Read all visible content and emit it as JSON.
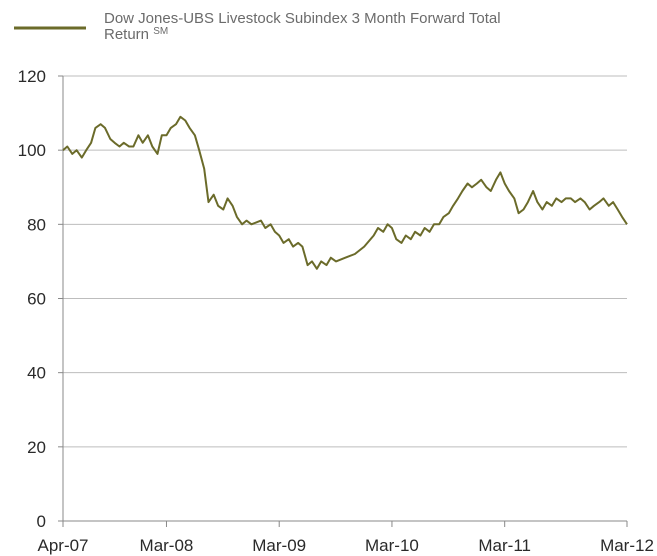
{
  "chart_data": {
    "type": "line",
    "title": "",
    "xlabel": "",
    "ylabel": "",
    "ylim": [
      0,
      120
    ],
    "yticks": [
      0,
      20,
      40,
      60,
      80,
      100,
      120
    ],
    "xlim": [
      "2007-04-01",
      "2012-03-31"
    ],
    "x_tick_labels": [
      "Apr-07",
      "Mar-08",
      "Mar-09",
      "Mar-10",
      "Mar-11",
      "Mar-12"
    ],
    "x_tick_dates": [
      "2007-04-01",
      "2008-03-01",
      "2009-03-01",
      "2010-03-01",
      "2011-03-01",
      "2012-03-31"
    ],
    "grid": "horizontal",
    "legend_position": "top-left",
    "series": [
      {
        "name": "Dow Jones-UBS Livestock Subindex 3 Month Forward Total Return",
        "name_sup": "SM",
        "color": "#6b6b2a",
        "points": [
          [
            "2007-04-01",
            100
          ],
          [
            "2007-04-15",
            101
          ],
          [
            "2007-05-01",
            99
          ],
          [
            "2007-05-15",
            100
          ],
          [
            "2007-06-01",
            98
          ],
          [
            "2007-06-15",
            100
          ],
          [
            "2007-07-01",
            102
          ],
          [
            "2007-07-15",
            106
          ],
          [
            "2007-08-01",
            107
          ],
          [
            "2007-08-15",
            106
          ],
          [
            "2007-09-01",
            103
          ],
          [
            "2007-09-15",
            102
          ],
          [
            "2007-10-01",
            101
          ],
          [
            "2007-10-15",
            102
          ],
          [
            "2007-11-01",
            101
          ],
          [
            "2007-11-15",
            101
          ],
          [
            "2007-12-01",
            104
          ],
          [
            "2007-12-15",
            102
          ],
          [
            "2008-01-01",
            104
          ],
          [
            "2008-01-15",
            101
          ],
          [
            "2008-02-01",
            99
          ],
          [
            "2008-02-15",
            104
          ],
          [
            "2008-03-01",
            104
          ],
          [
            "2008-03-15",
            106
          ],
          [
            "2008-04-01",
            107
          ],
          [
            "2008-04-15",
            109
          ],
          [
            "2008-05-01",
            108
          ],
          [
            "2008-05-15",
            106
          ],
          [
            "2008-06-01",
            104
          ],
          [
            "2008-06-15",
            100
          ],
          [
            "2008-07-01",
            95
          ],
          [
            "2008-07-15",
            86
          ],
          [
            "2008-08-01",
            88
          ],
          [
            "2008-08-15",
            85
          ],
          [
            "2008-09-01",
            84
          ],
          [
            "2008-09-15",
            87
          ],
          [
            "2008-10-01",
            85
          ],
          [
            "2008-10-15",
            82
          ],
          [
            "2008-11-01",
            80
          ],
          [
            "2008-11-15",
            81
          ],
          [
            "2008-12-01",
            80
          ],
          [
            "2009-01-01",
            81
          ],
          [
            "2009-01-15",
            79
          ],
          [
            "2009-02-01",
            80
          ],
          [
            "2009-02-15",
            78
          ],
          [
            "2009-03-01",
            77
          ],
          [
            "2009-03-15",
            75
          ],
          [
            "2009-04-01",
            76
          ],
          [
            "2009-04-15",
            74
          ],
          [
            "2009-05-01",
            75
          ],
          [
            "2009-05-15",
            74
          ],
          [
            "2009-06-01",
            69
          ],
          [
            "2009-06-15",
            70
          ],
          [
            "2009-07-01",
            68
          ],
          [
            "2009-07-15",
            70
          ],
          [
            "2009-08-01",
            69
          ],
          [
            "2009-08-15",
            71
          ],
          [
            "2009-09-01",
            70
          ],
          [
            "2009-10-01",
            71
          ],
          [
            "2009-11-01",
            72
          ],
          [
            "2009-12-01",
            74
          ],
          [
            "2010-01-01",
            77
          ],
          [
            "2010-01-15",
            79
          ],
          [
            "2010-02-01",
            78
          ],
          [
            "2010-02-15",
            80
          ],
          [
            "2010-03-01",
            79
          ],
          [
            "2010-03-15",
            76
          ],
          [
            "2010-04-01",
            75
          ],
          [
            "2010-04-15",
            77
          ],
          [
            "2010-05-01",
            76
          ],
          [
            "2010-05-15",
            78
          ],
          [
            "2010-06-01",
            77
          ],
          [
            "2010-06-15",
            79
          ],
          [
            "2010-07-01",
            78
          ],
          [
            "2010-07-15",
            80
          ],
          [
            "2010-08-01",
            80
          ],
          [
            "2010-08-15",
            82
          ],
          [
            "2010-09-01",
            83
          ],
          [
            "2010-09-15",
            85
          ],
          [
            "2010-10-01",
            87
          ],
          [
            "2010-10-15",
            89
          ],
          [
            "2010-11-01",
            91
          ],
          [
            "2010-11-15",
            90
          ],
          [
            "2010-12-01",
            91
          ],
          [
            "2010-12-15",
            92
          ],
          [
            "2011-01-01",
            90
          ],
          [
            "2011-01-15",
            89
          ],
          [
            "2011-02-01",
            92
          ],
          [
            "2011-02-15",
            94
          ],
          [
            "2011-03-01",
            91
          ],
          [
            "2011-03-15",
            89
          ],
          [
            "2011-04-01",
            87
          ],
          [
            "2011-04-15",
            83
          ],
          [
            "2011-05-01",
            84
          ],
          [
            "2011-05-15",
            86
          ],
          [
            "2011-06-01",
            89
          ],
          [
            "2011-06-15",
            86
          ],
          [
            "2011-07-01",
            84
          ],
          [
            "2011-07-15",
            86
          ],
          [
            "2011-08-01",
            85
          ],
          [
            "2011-08-15",
            87
          ],
          [
            "2011-09-01",
            86
          ],
          [
            "2011-09-15",
            87
          ],
          [
            "2011-10-01",
            87
          ],
          [
            "2011-10-15",
            86
          ],
          [
            "2011-11-01",
            87
          ],
          [
            "2011-11-15",
            86
          ],
          [
            "2011-12-01",
            84
          ],
          [
            "2011-12-15",
            85
          ],
          [
            "2012-01-01",
            86
          ],
          [
            "2012-01-15",
            87
          ],
          [
            "2012-02-01",
            85
          ],
          [
            "2012-02-15",
            86
          ],
          [
            "2012-03-01",
            84
          ],
          [
            "2012-03-15",
            82
          ],
          [
            "2012-03-31",
            80
          ]
        ]
      }
    ]
  }
}
